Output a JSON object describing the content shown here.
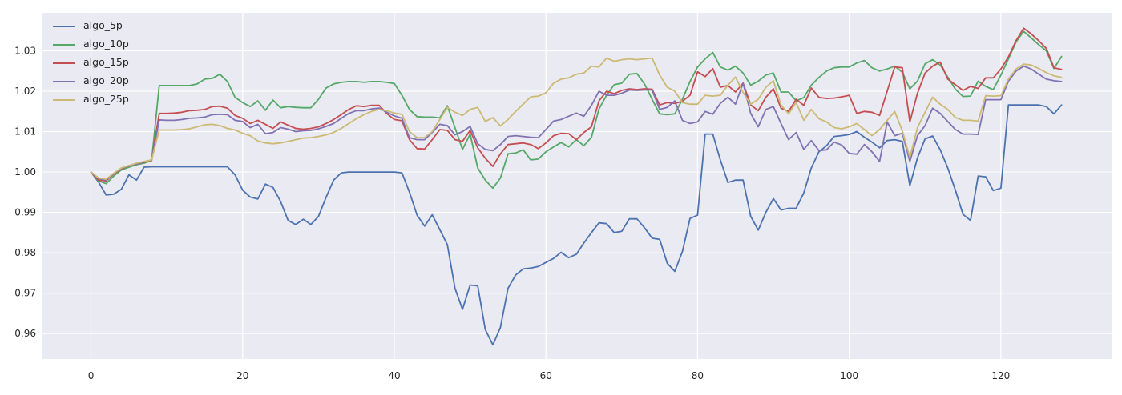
{
  "figure": {
    "background": "#ffffff",
    "axes_background": "#eaeaf2",
    "grid_color": "#ffffff",
    "text_color": "#262626"
  },
  "chart_data": {
    "type": "line",
    "title": "",
    "xlabel": "",
    "ylabel": "",
    "grid": true,
    "legend_position": "upper-left",
    "xlim": [
      -6.4,
      134.6
    ],
    "ylim": [
      0.9537,
      1.0394
    ],
    "xtick_values": [
      0,
      20,
      40,
      60,
      80,
      100,
      120
    ],
    "xtick_labels": [
      "0",
      "20",
      "40",
      "60",
      "80",
      "100",
      "120"
    ],
    "ytick_values": [
      0.96,
      0.97,
      0.98,
      0.99,
      1.0,
      1.01,
      1.02,
      1.03
    ],
    "ytick_labels": [
      "0.96",
      "0.97",
      "0.98",
      "0.99",
      "1.00",
      "1.01",
      "1.02",
      "1.03"
    ],
    "x_start": 0,
    "x_step": 1,
    "series": [
      {
        "name": "algo_5p",
        "color": "#4c72b0",
        "values": [
          1.0,
          0.9975,
          0.9943,
          0.9945,
          0.9957,
          0.9993,
          0.998,
          1.0012,
          1.0013,
          1.0013,
          1.0013,
          1.0013,
          1.0013,
          1.0013,
          1.0013,
          1.0013,
          1.0013,
          1.0013,
          1.0013,
          0.9993,
          0.9955,
          0.9938,
          0.9933,
          0.997,
          0.9962,
          0.9927,
          0.988,
          0.987,
          0.9883,
          0.987,
          0.989,
          0.9937,
          0.998,
          0.9998,
          1.0,
          1.0,
          1.0,
          1.0,
          1.0,
          1.0,
          1.0,
          0.9998,
          0.995,
          0.9893,
          0.9866,
          0.9894,
          0.9857,
          0.982,
          0.9712,
          0.966,
          0.972,
          0.9718,
          0.961,
          0.9572,
          0.9615,
          0.9712,
          0.9745,
          0.976,
          0.9762,
          0.9766,
          0.9776,
          0.9786,
          0.9801,
          0.9788,
          0.9796,
          0.9824,
          0.985,
          0.9874,
          0.9872,
          0.985,
          0.9853,
          0.9884,
          0.9884,
          0.9862,
          0.9836,
          0.9833,
          0.9774,
          0.9754,
          0.9803,
          0.9885,
          0.9893,
          1.0094,
          1.0094,
          1.003,
          0.9974,
          0.998,
          0.998,
          0.989,
          0.9856,
          0.99,
          0.9934,
          0.9906,
          0.991,
          0.991,
          0.9948,
          1.001,
          1.005,
          1.0065,
          1.0088,
          1.009,
          1.0093,
          1.01,
          1.0086,
          1.0074,
          1.006,
          1.0078,
          1.008,
          1.0076,
          0.9966,
          1.0035,
          1.0082,
          1.0089,
          1.0055,
          1.001,
          0.9955,
          0.9895,
          0.988,
          0.999,
          0.9988,
          0.9954,
          0.996,
          1.0166,
          1.0166,
          1.0166,
          1.0166,
          1.0166,
          1.0162,
          1.0144,
          1.0166
        ]
      },
      {
        "name": "algo_10p",
        "color": "#55a868",
        "values": [
          1.0,
          0.9978,
          0.9971,
          0.999,
          1.0005,
          1.0012,
          1.0018,
          1.0022,
          1.0028,
          1.0214,
          1.0214,
          1.0214,
          1.0214,
          1.0214,
          1.0218,
          1.023,
          1.0232,
          1.0242,
          1.0224,
          1.0185,
          1.0172,
          1.0162,
          1.0176,
          1.0153,
          1.0178,
          1.0159,
          1.0162,
          1.016,
          1.0159,
          1.0159,
          1.018,
          1.0208,
          1.0218,
          1.0222,
          1.0224,
          1.0224,
          1.0222,
          1.0224,
          1.0224,
          1.0222,
          1.0219,
          1.019,
          1.0155,
          1.0137,
          1.0136,
          1.0136,
          1.0134,
          1.0164,
          1.011,
          1.0056,
          1.0094,
          1.001,
          0.998,
          0.996,
          0.9985,
          1.0045,
          1.0047,
          1.0055,
          1.003,
          1.0032,
          1.005,
          1.0062,
          1.0073,
          1.0062,
          1.008,
          1.0065,
          1.0086,
          1.0156,
          1.019,
          1.0216,
          1.022,
          1.0242,
          1.0244,
          1.0218,
          1.018,
          1.0144,
          1.0142,
          1.0144,
          1.018,
          1.0224,
          1.026,
          1.028,
          1.0296,
          1.026,
          1.0252,
          1.0262,
          1.0245,
          1.0215,
          1.0225,
          1.024,
          1.0245,
          1.0198,
          1.0198,
          1.0176,
          1.0184,
          1.0215,
          1.0234,
          1.025,
          1.0258,
          1.026,
          1.026,
          1.027,
          1.0276,
          1.0258,
          1.025,
          1.0255,
          1.0262,
          1.0247,
          1.0206,
          1.0225,
          1.0268,
          1.0278,
          1.0265,
          1.0235,
          1.0205,
          1.0187,
          1.0188,
          1.0225,
          1.0212,
          1.0204,
          1.024,
          1.028,
          1.0322,
          1.0348,
          1.0332,
          1.0315,
          1.03,
          1.0256,
          1.0286
        ]
      },
      {
        "name": "algo_15p",
        "color": "#c44e52",
        "values": [
          1.0,
          0.998,
          0.9978,
          0.9995,
          1.0008,
          1.0015,
          1.002,
          1.0024,
          1.0029,
          1.0145,
          1.0145,
          1.0146,
          1.0148,
          1.0152,
          1.0153,
          1.0155,
          1.0162,
          1.0163,
          1.0158,
          1.014,
          1.0133,
          1.012,
          1.0128,
          1.0118,
          1.0108,
          1.0124,
          1.0116,
          1.0108,
          1.0106,
          1.0108,
          1.0112,
          1.012,
          1.013,
          1.0142,
          1.0155,
          1.0164,
          1.0162,
          1.0165,
          1.0165,
          1.0145,
          1.013,
          1.0127,
          1.008,
          1.0058,
          1.0057,
          1.008,
          1.0105,
          1.0103,
          1.008,
          1.0076,
          1.0103,
          1.006,
          1.0034,
          1.0014,
          1.0045,
          1.0068,
          1.007,
          1.0072,
          1.0068,
          1.0058,
          1.0072,
          1.009,
          1.0096,
          1.0095,
          1.008,
          1.0098,
          1.0112,
          1.0176,
          1.02,
          1.0194,
          1.0202,
          1.0206,
          1.0204,
          1.0206,
          1.0205,
          1.0166,
          1.0172,
          1.017,
          1.0175,
          1.019,
          1.0248,
          1.0236,
          1.0256,
          1.021,
          1.0214,
          1.0198,
          1.022,
          1.0166,
          1.0152,
          1.0185,
          1.0206,
          1.0158,
          1.015,
          1.018,
          1.0165,
          1.0208,
          1.0185,
          1.0182,
          1.0183,
          1.0186,
          1.019,
          1.0145,
          1.015,
          1.0148,
          1.014,
          1.02,
          1.026,
          1.0258,
          1.0124,
          1.0195,
          1.0245,
          1.0262,
          1.0272,
          1.023,
          1.0216,
          1.0202,
          1.0212,
          1.0207,
          1.0233,
          1.0233,
          1.0255,
          1.0285,
          1.0325,
          1.0356,
          1.0342,
          1.0325,
          1.0306,
          1.0258,
          1.0254
        ]
      },
      {
        "name": "algo_20p",
        "color": "#8172b2",
        "values": [
          1.0,
          0.9984,
          0.998,
          0.9996,
          1.0009,
          1.0015,
          1.002,
          1.0025,
          1.003,
          1.0129,
          1.0128,
          1.0128,
          1.013,
          1.0133,
          1.0134,
          1.0136,
          1.0142,
          1.0143,
          1.0142,
          1.0128,
          1.0125,
          1.011,
          1.0118,
          1.0095,
          1.0098,
          1.011,
          1.0106,
          1.01,
          1.0102,
          1.0103,
          1.0107,
          1.0113,
          1.012,
          1.0133,
          1.0145,
          1.0152,
          1.0152,
          1.0156,
          1.0158,
          1.0148,
          1.0139,
          1.0133,
          1.0085,
          1.008,
          1.008,
          1.0098,
          1.0118,
          1.0115,
          1.0092,
          1.01,
          1.0113,
          1.007,
          1.0056,
          1.0053,
          1.0068,
          1.0088,
          1.009,
          1.0088,
          1.0086,
          1.0085,
          1.0105,
          1.0126,
          1.013,
          1.0138,
          1.0146,
          1.0138,
          1.0165,
          1.02,
          1.019,
          1.019,
          1.0195,
          1.0203,
          1.0202,
          1.0203,
          1.0203,
          1.0155,
          1.016,
          1.0176,
          1.0128,
          1.012,
          1.0124,
          1.015,
          1.0143,
          1.017,
          1.0185,
          1.0168,
          1.022,
          1.0145,
          1.0112,
          1.0155,
          1.0162,
          1.012,
          1.008,
          1.0098,
          1.0056,
          1.0078,
          1.0053,
          1.0055,
          1.0074,
          1.0067,
          1.0046,
          1.0044,
          1.0068,
          1.005,
          1.0026,
          1.0124,
          1.009,
          1.0096,
          1.0026,
          1.009,
          1.0115,
          1.0158,
          1.0145,
          1.0125,
          1.0105,
          1.0094,
          1.0094,
          1.0093,
          1.0179,
          1.0179,
          1.0179,
          1.0225,
          1.025,
          1.0262,
          1.0255,
          1.0242,
          1.023,
          1.0226,
          1.0224
        ]
      },
      {
        "name": "algo_25p",
        "color": "#ccb974",
        "values": [
          1.0,
          0.9985,
          0.9982,
          0.9997,
          1.001,
          1.0016,
          1.0022,
          1.0026,
          1.003,
          1.0104,
          1.0104,
          1.0104,
          1.0105,
          1.0107,
          1.0112,
          1.0117,
          1.0118,
          1.0115,
          1.0108,
          1.0104,
          1.0096,
          1.009,
          1.0077,
          1.0072,
          1.007,
          1.0072,
          1.0076,
          1.008,
          1.0084,
          1.0085,
          1.0088,
          1.0092,
          1.0098,
          1.0108,
          1.012,
          1.0132,
          1.0142,
          1.015,
          1.0155,
          1.0152,
          1.0146,
          1.0143,
          1.01,
          1.0085,
          1.0085,
          1.01,
          1.013,
          1.016,
          1.0148,
          1.014,
          1.0155,
          1.016,
          1.0125,
          1.0135,
          1.0114,
          1.013,
          1.015,
          1.0168,
          1.0186,
          1.0188,
          1.0196,
          1.022,
          1.023,
          1.0233,
          1.0242,
          1.0245,
          1.0262,
          1.026,
          1.0282,
          1.0274,
          1.0278,
          1.028,
          1.0278,
          1.028,
          1.0282,
          1.024,
          1.021,
          1.02,
          1.0172,
          1.0168,
          1.0168,
          1.019,
          1.0188,
          1.019,
          1.0215,
          1.0235,
          1.0197,
          1.0168,
          1.018,
          1.021,
          1.0226,
          1.0166,
          1.0144,
          1.0172,
          1.0128,
          1.0155,
          1.0132,
          1.0124,
          1.011,
          1.0107,
          1.0112,
          1.012,
          1.0105,
          1.009,
          1.0105,
          1.0128,
          1.015,
          1.0102,
          1.0036,
          1.011,
          1.0148,
          1.0185,
          1.0168,
          1.0155,
          1.0135,
          1.0128,
          1.0128,
          1.0126,
          1.0189,
          1.0188,
          1.0189,
          1.023,
          1.0255,
          1.0267,
          1.0265,
          1.0256,
          1.0246,
          1.0238,
          1.0234
        ]
      }
    ]
  }
}
